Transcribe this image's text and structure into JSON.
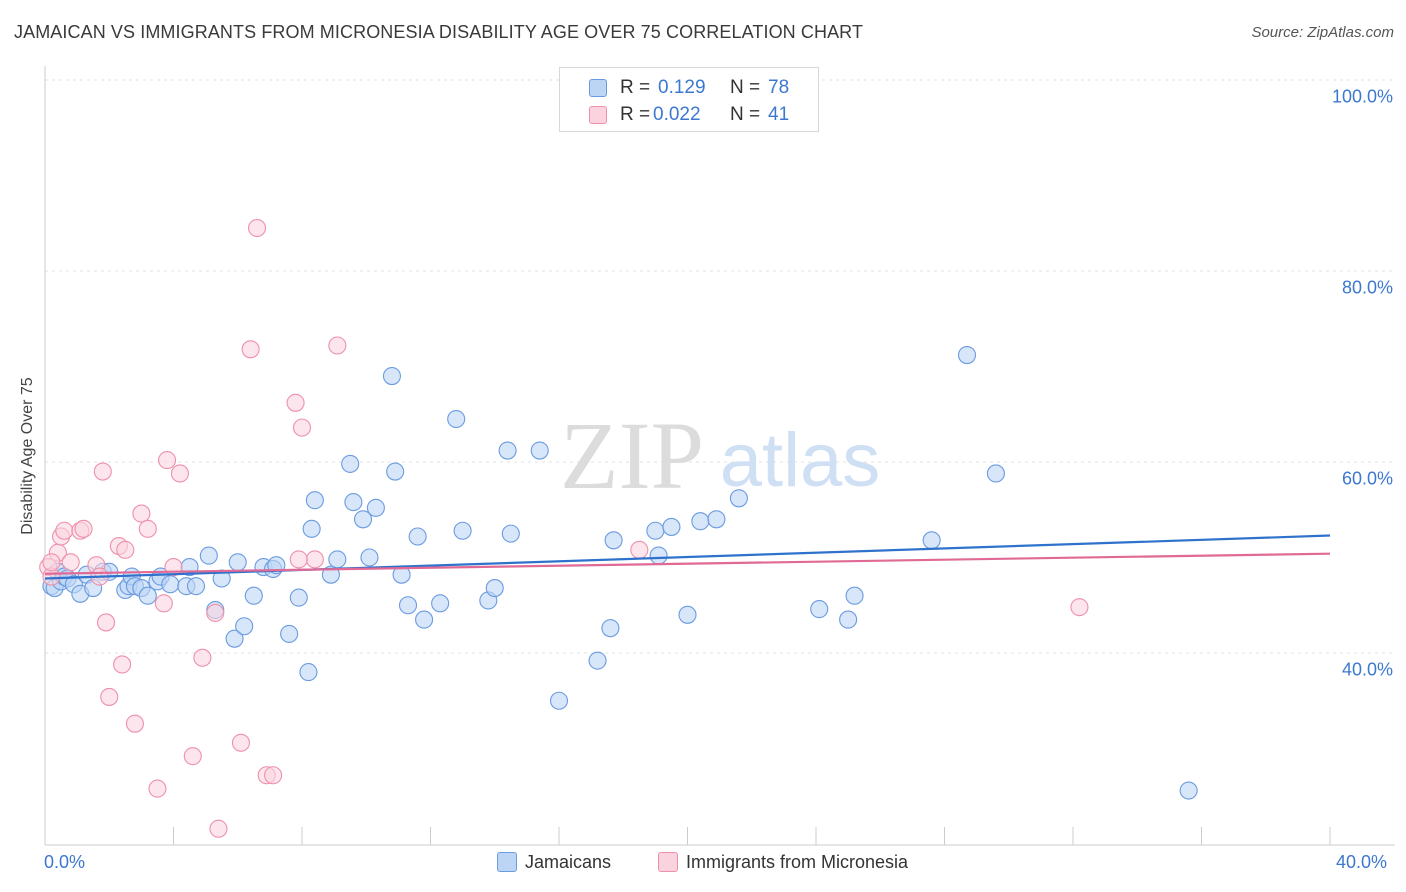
{
  "header": {
    "title": "JAMAICAN VS IMMIGRANTS FROM MICRONESIA DISABILITY AGE OVER 75 CORRELATION CHART",
    "source": "Source: ZipAtlas.com"
  },
  "watermark": {
    "zip": "ZIP",
    "atlas": "atlas"
  },
  "stats": {
    "r_label": "R =",
    "n_label": "N =",
    "jamaicans": {
      "r": "0.129",
      "n": "78",
      "color": "#a9c8f0"
    },
    "micronesia": {
      "r": "0.022",
      "n": "41",
      "color": "#f5b8ca"
    }
  },
  "legend": {
    "jamaicans": "Jamaicans",
    "micronesia": "Immigrants from Micronesia"
  },
  "chart_data": {
    "type": "scatter",
    "title": "JAMAICAN VS IMMIGRANTS FROM MICRONESIA DISABILITY AGE OVER 75 CORRELATION CHART",
    "xlabel": "",
    "ylabel": "Disability Age Over 75",
    "xlim": [
      0,
      40
    ],
    "ylim": [
      22,
      104
    ],
    "x_tick_labels": [
      "0.0%",
      "40.0%"
    ],
    "y_tick_labels": [
      "40.0%",
      "60.0%",
      "80.0%",
      "100.0%"
    ],
    "y_ticks": [
      40,
      60,
      80,
      100
    ],
    "grid": "horizontal dashed",
    "legend_position": "bottom-center",
    "series": [
      {
        "name": "Jamaicans",
        "color": "#6b9be0",
        "fill": "#bcd5f5",
        "trend": {
          "x": [
            0,
            40
          ],
          "y": [
            47.8,
            52.3
          ],
          "color": "#2f72cc"
        },
        "points": [
          [
            0.2,
            47.0
          ],
          [
            0.3,
            46.8
          ],
          [
            0.4,
            48.5
          ],
          [
            0.5,
            47.5
          ],
          [
            0.6,
            48.0
          ],
          [
            0.7,
            47.8
          ],
          [
            0.9,
            47.2
          ],
          [
            1.1,
            46.2
          ],
          [
            1.3,
            48.2
          ],
          [
            1.5,
            46.8
          ],
          [
            1.8,
            48.5
          ],
          [
            2.0,
            48.5
          ],
          [
            2.5,
            46.6
          ],
          [
            2.6,
            47.0
          ],
          [
            2.7,
            48.0
          ],
          [
            2.8,
            47.0
          ],
          [
            3.0,
            46.8
          ],
          [
            3.2,
            46.0
          ],
          [
            3.5,
            47.5
          ],
          [
            3.6,
            48.0
          ],
          [
            3.9,
            47.2
          ],
          [
            4.4,
            47.0
          ],
          [
            4.5,
            49.0
          ],
          [
            4.7,
            47.0
          ],
          [
            5.1,
            50.2
          ],
          [
            5.3,
            44.5
          ],
          [
            5.5,
            47.8
          ],
          [
            5.9,
            41.5
          ],
          [
            6.0,
            49.5
          ],
          [
            6.2,
            42.8
          ],
          [
            6.5,
            46.0
          ],
          [
            6.8,
            49.0
          ],
          [
            7.1,
            48.8
          ],
          [
            7.2,
            49.2
          ],
          [
            7.6,
            42.0
          ],
          [
            7.9,
            45.8
          ],
          [
            8.2,
            38.0
          ],
          [
            8.3,
            53.0
          ],
          [
            8.4,
            56.0
          ],
          [
            8.9,
            48.2
          ],
          [
            9.1,
            49.8
          ],
          [
            9.5,
            59.8
          ],
          [
            9.6,
            55.8
          ],
          [
            9.9,
            54.0
          ],
          [
            10.1,
            50.0
          ],
          [
            10.3,
            55.2
          ],
          [
            10.8,
            69.0
          ],
          [
            10.9,
            59.0
          ],
          [
            11.1,
            48.2
          ],
          [
            11.3,
            45.0
          ],
          [
            11.6,
            52.2
          ],
          [
            11.8,
            43.5
          ],
          [
            12.3,
            45.2
          ],
          [
            12.8,
            64.5
          ],
          [
            13.0,
            52.8
          ],
          [
            13.8,
            45.5
          ],
          [
            14.0,
            46.8
          ],
          [
            14.4,
            61.2
          ],
          [
            14.5,
            52.5
          ],
          [
            15.4,
            61.2
          ],
          [
            16.0,
            35.0
          ],
          [
            17.2,
            39.2
          ],
          [
            17.6,
            42.6
          ],
          [
            17.7,
            51.8
          ],
          [
            19.0,
            52.8
          ],
          [
            19.1,
            50.2
          ],
          [
            19.5,
            53.2
          ],
          [
            20.0,
            44.0
          ],
          [
            20.4,
            53.8
          ],
          [
            20.9,
            54.0
          ],
          [
            21.6,
            56.2
          ],
          [
            24.1,
            44.6
          ],
          [
            25.0,
            43.5
          ],
          [
            25.2,
            46.0
          ],
          [
            27.6,
            51.8
          ],
          [
            28.7,
            71.2
          ],
          [
            29.6,
            58.8
          ],
          [
            35.6,
            25.6
          ]
        ]
      },
      {
        "name": "Immigrants from Micronesia",
        "color": "#ee90ab",
        "fill": "#fad3df",
        "trend": {
          "x": [
            0,
            40
          ],
          "y": [
            48.3,
            50.4
          ],
          "color": "#e06a95"
        },
        "points": [
          [
            0.1,
            49.0
          ],
          [
            0.2,
            48.0
          ],
          [
            0.4,
            50.5
          ],
          [
            0.5,
            52.2
          ],
          [
            0.6,
            52.8
          ],
          [
            0.8,
            49.5
          ],
          [
            1.1,
            52.8
          ],
          [
            1.2,
            53.0
          ],
          [
            1.6,
            49.2
          ],
          [
            1.7,
            48.0
          ],
          [
            1.8,
            59.0
          ],
          [
            1.9,
            43.2
          ],
          [
            2.3,
            51.2
          ],
          [
            2.4,
            38.8
          ],
          [
            2.5,
            50.8
          ],
          [
            2.0,
            35.4
          ],
          [
            2.8,
            32.6
          ],
          [
            3.0,
            54.6
          ],
          [
            3.2,
            53.0
          ],
          [
            3.5,
            25.8
          ],
          [
            3.7,
            45.2
          ],
          [
            3.8,
            60.2
          ],
          [
            4.0,
            49.0
          ],
          [
            4.2,
            58.8
          ],
          [
            4.6,
            29.2
          ],
          [
            4.9,
            39.5
          ],
          [
            5.3,
            44.2
          ],
          [
            5.4,
            21.6
          ],
          [
            6.1,
            30.6
          ],
          [
            6.4,
            71.8
          ],
          [
            6.6,
            84.5
          ],
          [
            6.9,
            27.2
          ],
          [
            7.1,
            27.2
          ],
          [
            7.8,
            66.2
          ],
          [
            8.0,
            63.6
          ],
          [
            8.4,
            49.8
          ],
          [
            7.9,
            49.8
          ],
          [
            9.1,
            72.2
          ],
          [
            18.5,
            50.8
          ],
          [
            32.2,
            44.8
          ],
          [
            0.2,
            49.5
          ]
        ]
      }
    ]
  }
}
